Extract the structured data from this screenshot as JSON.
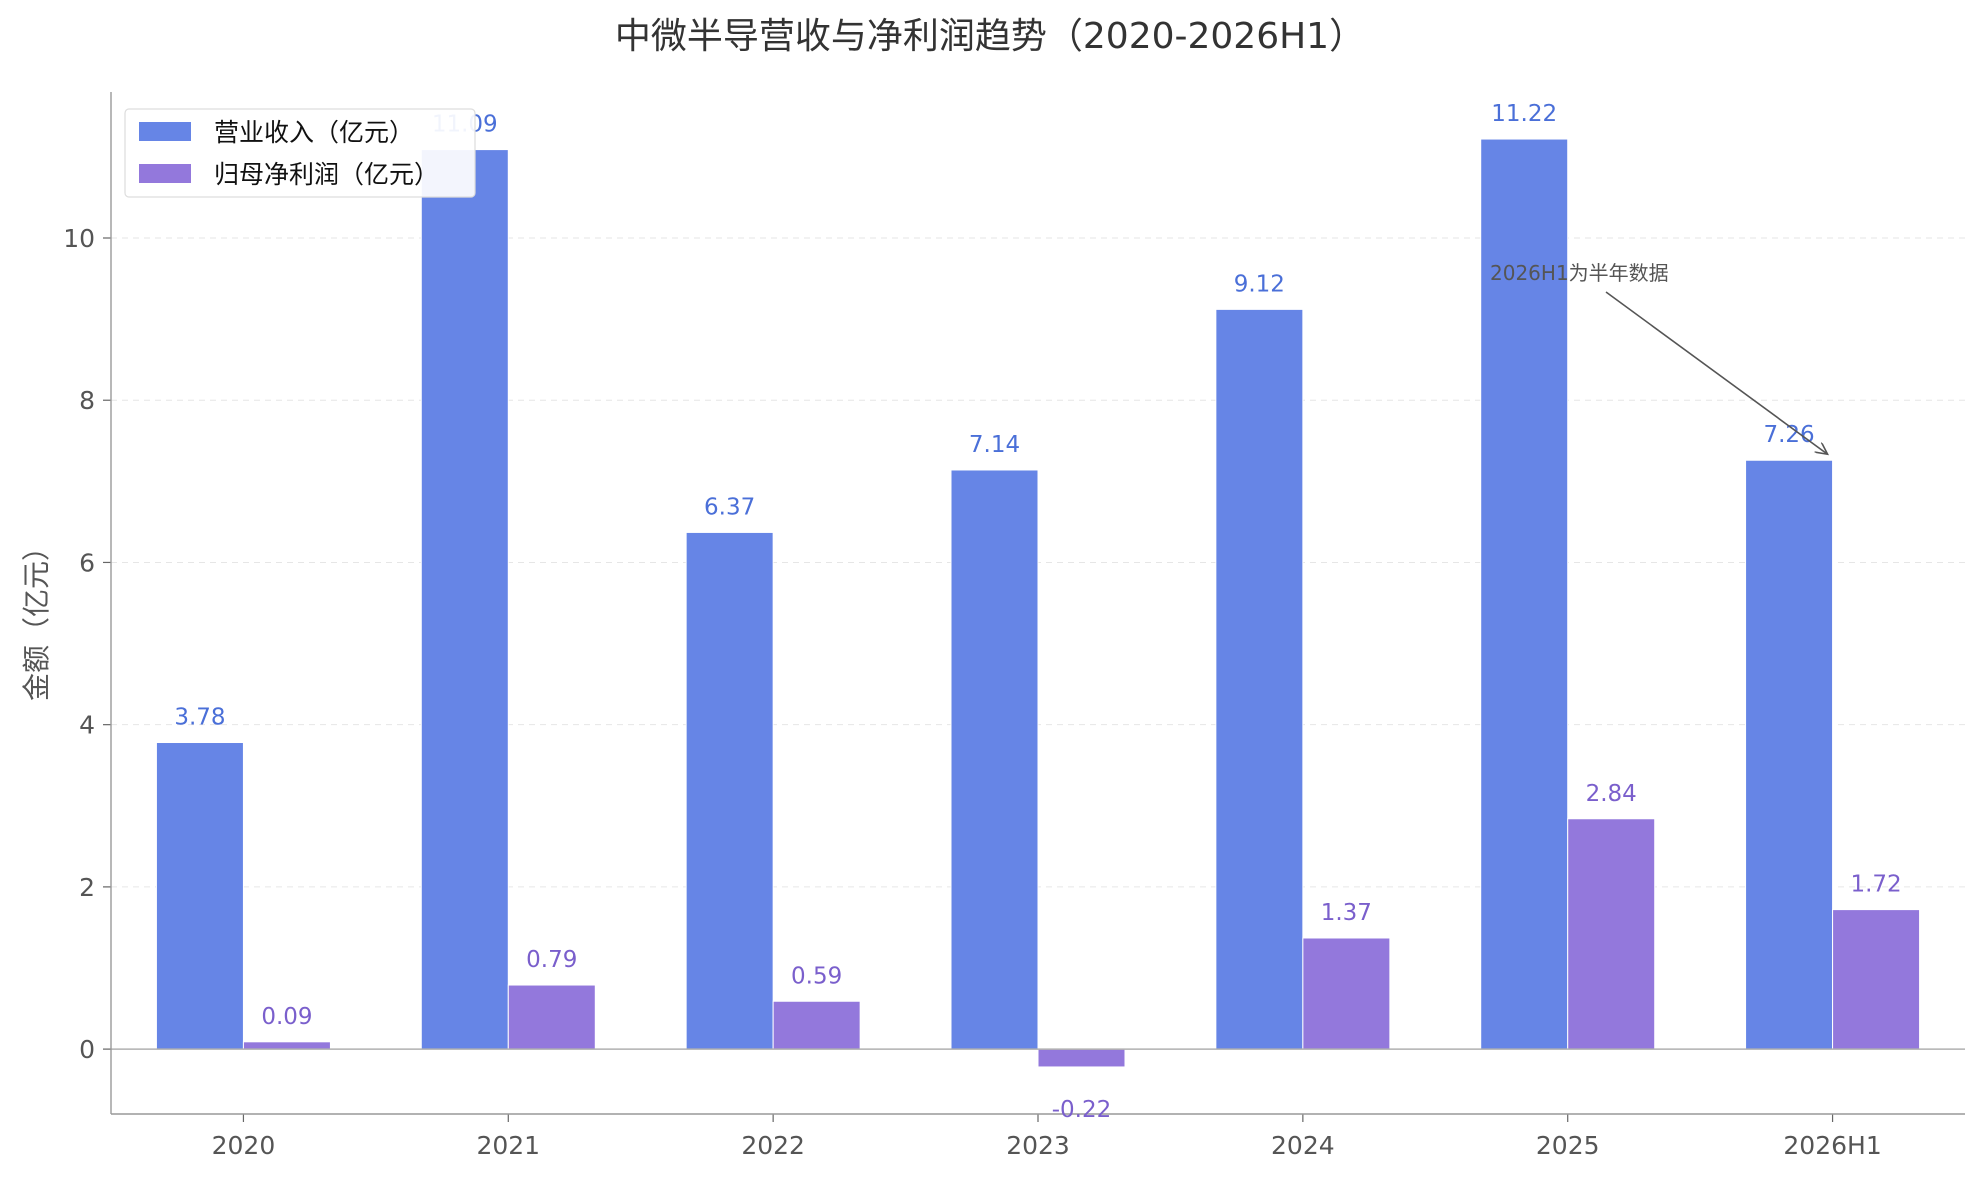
{
  "chart_data": {
    "type": "bar",
    "title": "中微半导营收与净利润趋势（2020-2026H1）",
    "xlabel": "",
    "ylabel": "金额（亿元）",
    "categories": [
      "2020",
      "2021",
      "2022",
      "2023",
      "2024",
      "2025",
      "2026H1"
    ],
    "series": [
      {
        "name": "营业收入（亿元）",
        "values": [
          3.78,
          11.09,
          6.37,
          7.14,
          9.12,
          11.22,
          7.26
        ],
        "labels": [
          "3.78",
          "11.09",
          "6.37",
          "7.14",
          "9.12",
          "11.22",
          "7.26"
        ],
        "color": "#6685E6",
        "label_color": "#4A6FD8"
      },
      {
        "name": "归母净利润（亿元）",
        "values": [
          0.09,
          0.79,
          0.59,
          -0.22,
          1.37,
          2.84,
          1.72
        ],
        "labels": [
          "0.09",
          "0.79",
          "0.59",
          "-0.22",
          "1.37",
          "2.84",
          "1.72"
        ],
        "color": "#9378DC",
        "label_color": "#7A5FCC"
      }
    ],
    "ylim": [
      -0.8,
      11.8
    ],
    "yticks": [
      0,
      2,
      4,
      6,
      8,
      10
    ],
    "ytick_labels": [
      "0",
      "2",
      "4",
      "6",
      "8",
      "10"
    ],
    "grid": true,
    "legend_position": "top-left",
    "annotation": {
      "text": "2026H1为半年数据",
      "target_category": "2026H1",
      "target_series": 0
    }
  }
}
